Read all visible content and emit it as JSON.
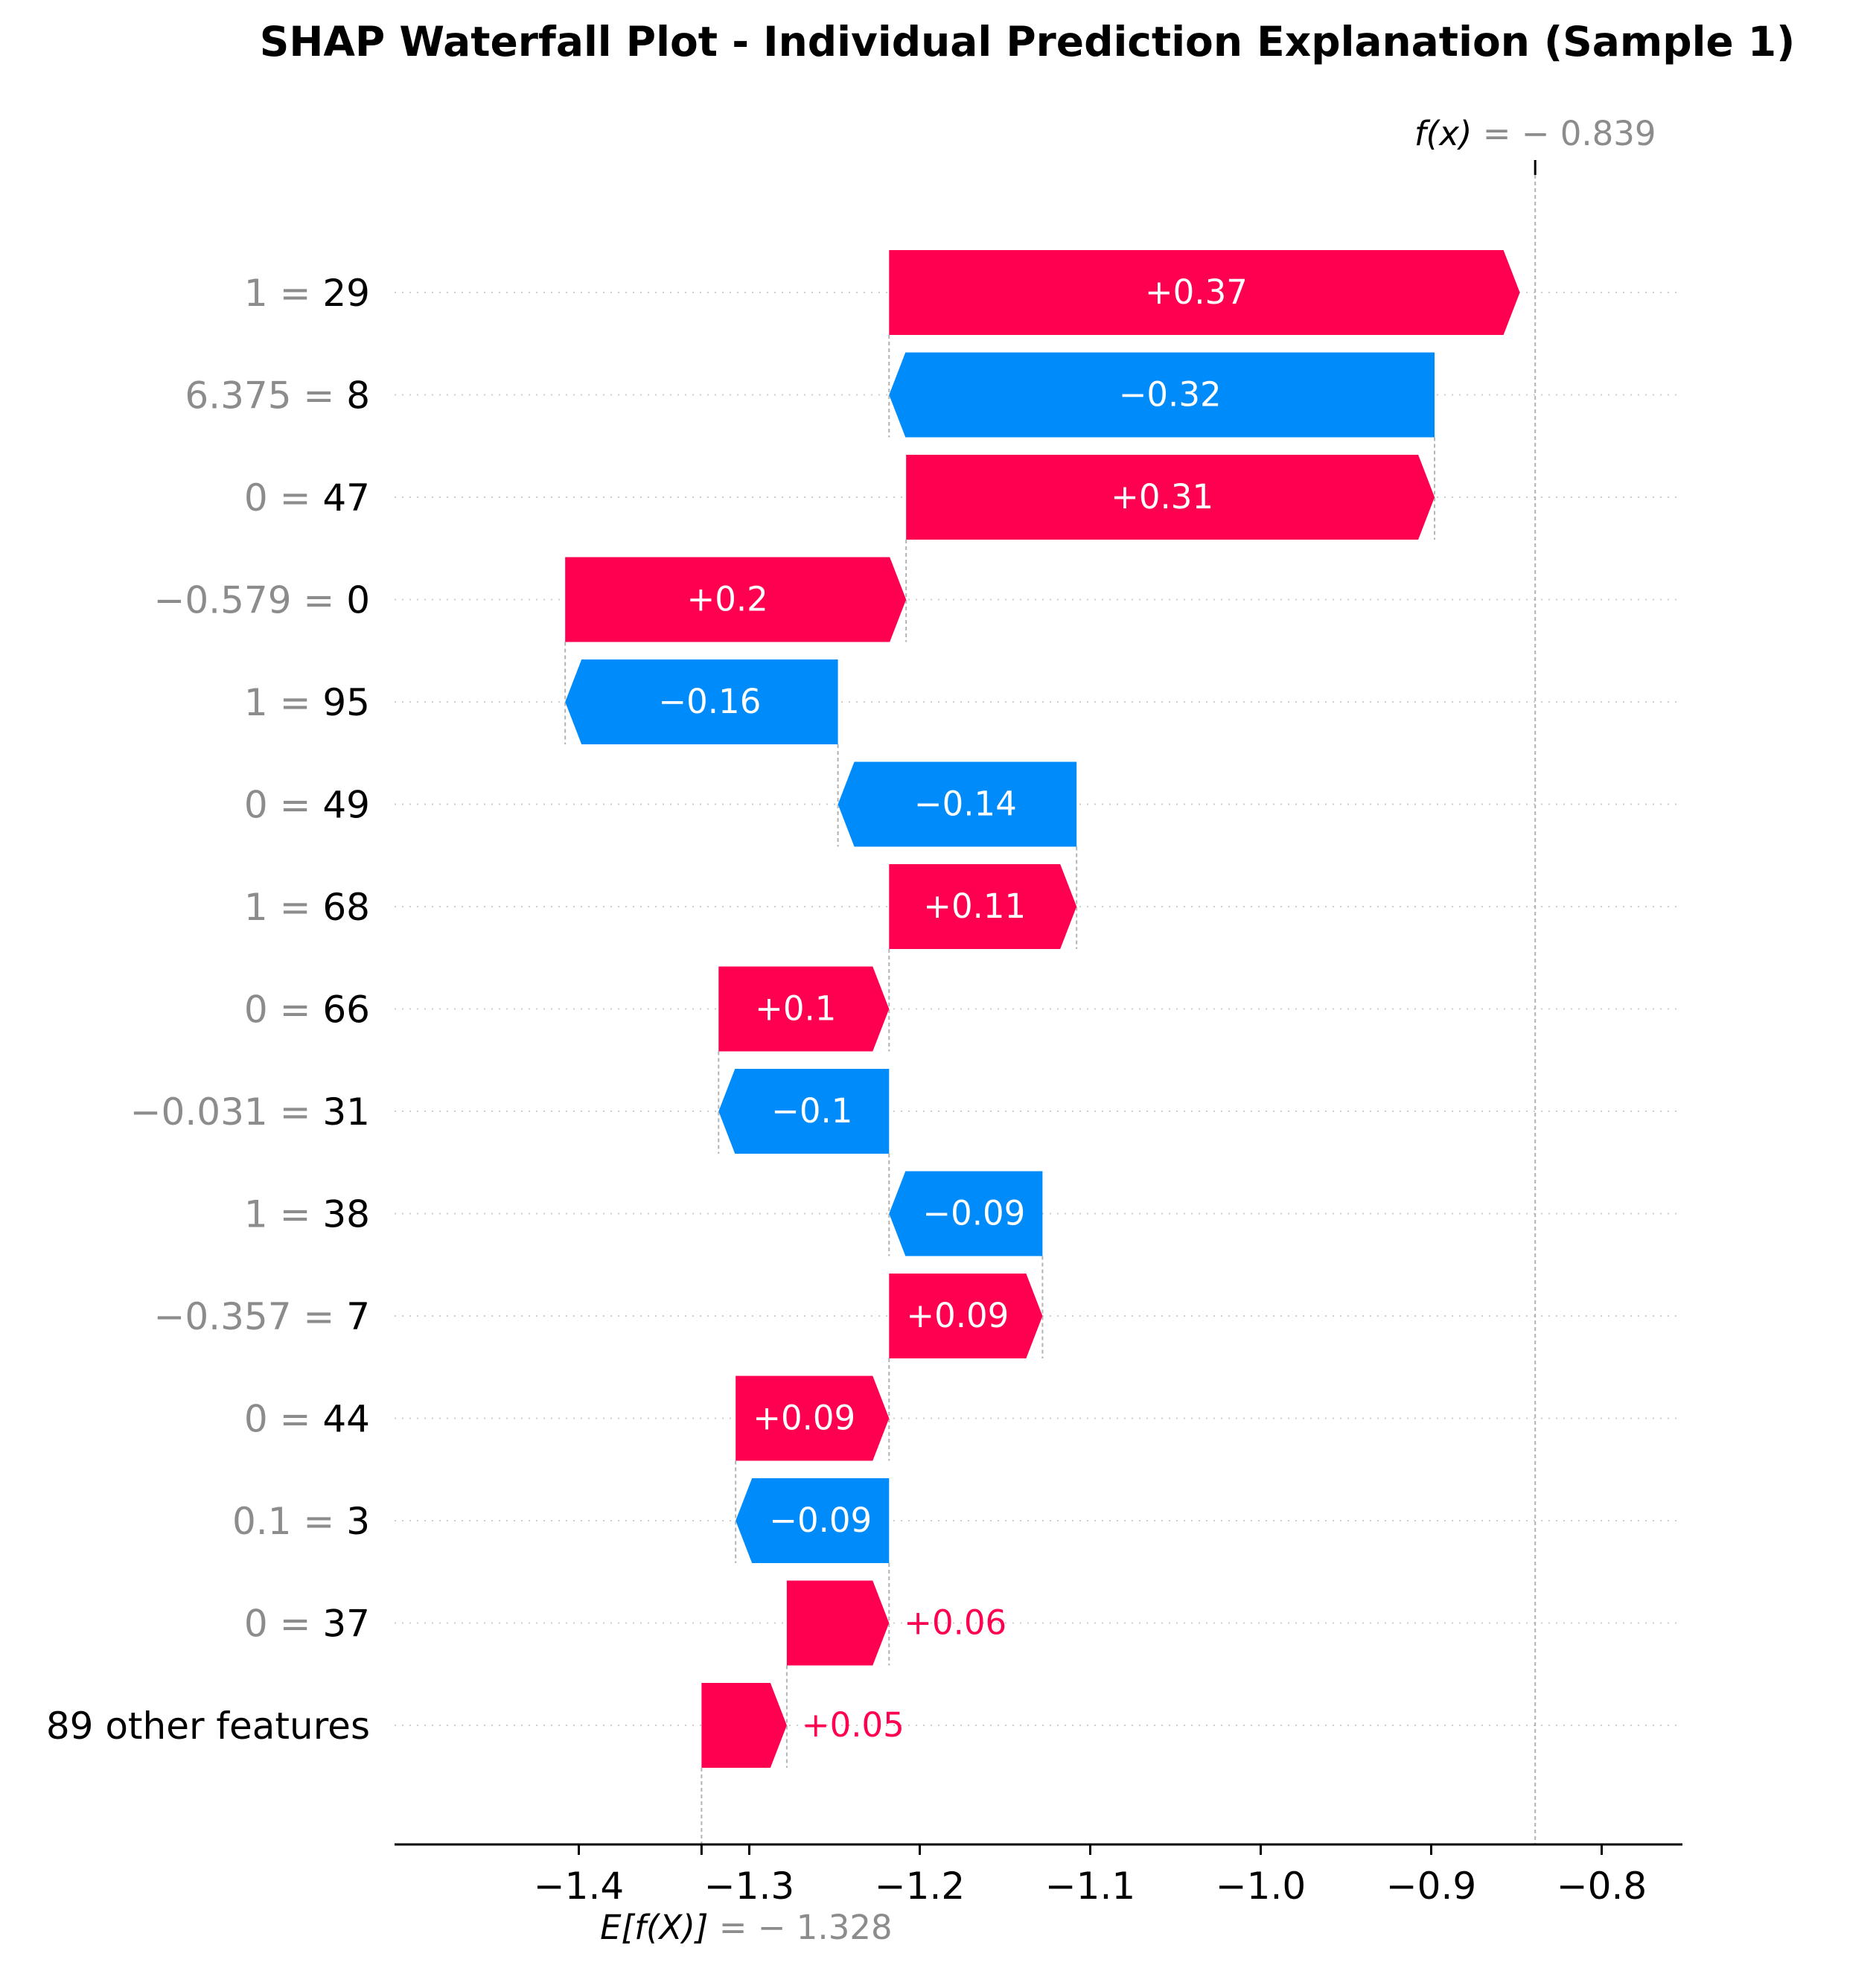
{
  "chart_data": {
    "type": "waterfall",
    "title": "SHAP Waterfall Plot - Individual Prediction Explanation (Sample 1)",
    "base_value": -1.328,
    "base_value_label": "E[f(X)]",
    "base_value_text": "= − 1.328",
    "output_value": -0.839,
    "output_value_label": "f(x)",
    "output_value_text": "= − 0.839",
    "xlim": [
      -1.4,
      -0.8
    ],
    "x_ticks": [
      {
        "value": -1.4,
        "label": "−1.4"
      },
      {
        "value": -1.3,
        "label": "−1.3"
      },
      {
        "value": -1.2,
        "label": "−1.2"
      },
      {
        "value": -1.1,
        "label": "−1.1"
      },
      {
        "value": -1.0,
        "label": "−1.0"
      },
      {
        "value": -0.9,
        "label": "−0.9"
      },
      {
        "value": -0.8,
        "label": "−0.8"
      }
    ],
    "positive_color": "#ff0051",
    "negative_color": "#008bfb",
    "features": [
      {
        "value": "1",
        "name": "29",
        "shap": 0.37,
        "label": "+0.37"
      },
      {
        "value": "6.375",
        "name": "8",
        "shap": -0.32,
        "label": "−0.32"
      },
      {
        "value": "0",
        "name": "47",
        "shap": 0.31,
        "label": "+0.31"
      },
      {
        "value": "−0.579",
        "name": "0",
        "shap": 0.2,
        "label": "+0.2"
      },
      {
        "value": "1",
        "name": "95",
        "shap": -0.16,
        "label": "−0.16"
      },
      {
        "value": "0",
        "name": "49",
        "shap": -0.14,
        "label": "−0.14"
      },
      {
        "value": "1",
        "name": "68",
        "shap": 0.11,
        "label": "+0.11"
      },
      {
        "value": "0",
        "name": "66",
        "shap": 0.1,
        "label": "+0.1"
      },
      {
        "value": "−0.031",
        "name": "31",
        "shap": -0.1,
        "label": "−0.1"
      },
      {
        "value": "1",
        "name": "38",
        "shap": -0.09,
        "label": "−0.09"
      },
      {
        "value": "−0.357",
        "name": "7",
        "shap": 0.09,
        "label": "+0.09"
      },
      {
        "value": "0",
        "name": "44",
        "shap": 0.09,
        "label": "+0.09"
      },
      {
        "value": "0.1",
        "name": "3",
        "shap": -0.09,
        "label": "−0.09"
      },
      {
        "value": "0",
        "name": "37",
        "shap": 0.06,
        "label": "+0.06"
      },
      {
        "value": "",
        "name": "89 other features",
        "shap": 0.05,
        "label": "+0.05"
      }
    ]
  }
}
